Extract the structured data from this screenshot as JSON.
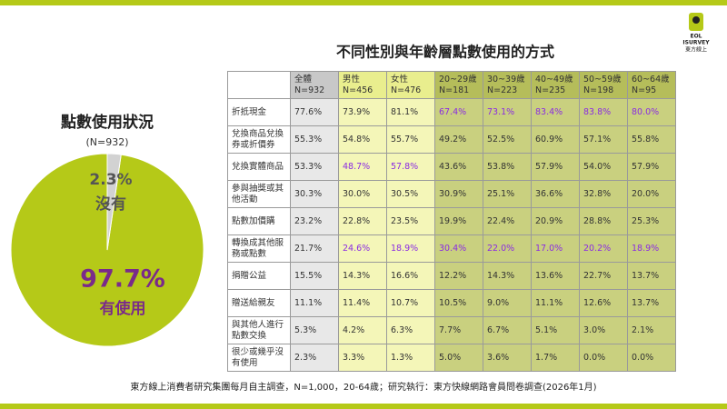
{
  "chart_data": {
    "type": "pie",
    "title": "點數使用狀況",
    "subtitle": "(N=932)",
    "categories": [
      "有使用",
      "沒有"
    ],
    "values": [
      97.7,
      2.3
    ],
    "value_labels": [
      "97.7%",
      "2.3%"
    ],
    "colors": [
      "#b5c918",
      "#d2d2d2"
    ],
    "label_colors": [
      "#7a2a8a",
      "#555555"
    ]
  },
  "table": {
    "title": "不同性別與年齡層點數使用的方式",
    "columns": [
      {
        "name": "全體",
        "n": "N=932"
      },
      {
        "name": "男性",
        "n": "N=456"
      },
      {
        "name": "女性",
        "n": "N=476"
      },
      {
        "name": "20~29歲",
        "n": "N=181"
      },
      {
        "name": "30~39歲",
        "n": "N=223"
      },
      {
        "name": "40~49歲",
        "n": "N=235"
      },
      {
        "name": "50~59歲",
        "n": "N=198"
      },
      {
        "name": "60~64歲",
        "n": "N=95"
      }
    ],
    "rows": [
      {
        "label": "折抵現金",
        "cells": [
          "77.6%",
          "73.9%",
          "81.1%",
          "67.4%",
          "73.1%",
          "83.4%",
          "83.8%",
          "80.0%"
        ],
        "bold": [
          3,
          4,
          5,
          6,
          7
        ]
      },
      {
        "label": "兌換商品兌換券或折價券",
        "cells": [
          "55.3%",
          "54.8%",
          "55.7%",
          "49.2%",
          "52.5%",
          "60.9%",
          "57.1%",
          "55.8%"
        ],
        "bold": []
      },
      {
        "label": "兌換實體商品",
        "cells": [
          "53.3%",
          "48.7%",
          "57.8%",
          "43.6%",
          "53.8%",
          "57.9%",
          "54.0%",
          "57.9%"
        ],
        "bold": [
          1,
          2
        ]
      },
      {
        "label": "參與抽獎或其他活動",
        "cells": [
          "30.3%",
          "30.0%",
          "30.5%",
          "30.9%",
          "25.1%",
          "36.6%",
          "32.8%",
          "20.0%"
        ],
        "bold": []
      },
      {
        "label": "點數加價購",
        "cells": [
          "23.2%",
          "22.8%",
          "23.5%",
          "19.9%",
          "22.4%",
          "20.9%",
          "28.8%",
          "25.3%"
        ],
        "bold": []
      },
      {
        "label": "轉換成其他服務或點數",
        "cells": [
          "21.7%",
          "24.6%",
          "18.9%",
          "30.4%",
          "22.0%",
          "17.0%",
          "20.2%",
          "18.9%"
        ],
        "bold": [
          1,
          2,
          3,
          4,
          5,
          6,
          7
        ]
      },
      {
        "label": "捐贈公益",
        "cells": [
          "15.5%",
          "14.3%",
          "16.6%",
          "12.2%",
          "14.3%",
          "13.6%",
          "22.7%",
          "13.7%"
        ],
        "bold": []
      },
      {
        "label": "贈送給親友",
        "cells": [
          "11.1%",
          "11.4%",
          "10.7%",
          "10.5%",
          "9.0%",
          "11.1%",
          "12.6%",
          "13.7%"
        ],
        "bold": []
      },
      {
        "label": "與其他人進行點數交換",
        "cells": [
          "5.3%",
          "4.2%",
          "6.3%",
          "7.7%",
          "6.7%",
          "5.1%",
          "3.0%",
          "2.1%"
        ],
        "bold": []
      },
      {
        "label": "很少或幾乎沒有使用",
        "cells": [
          "2.3%",
          "3.3%",
          "1.3%",
          "5.0%",
          "3.6%",
          "1.7%",
          "0.0%",
          "0.0%"
        ],
        "bold": []
      }
    ]
  },
  "logo": {
    "line1": "EOL",
    "line2": "ISURVEY",
    "line3": "東方線上"
  },
  "footer": "東方線上消費者研究集團每月自主調查，N=1,000，20-64歲；研究執行：東方快線網路會員問卷調查(2026年1月)"
}
